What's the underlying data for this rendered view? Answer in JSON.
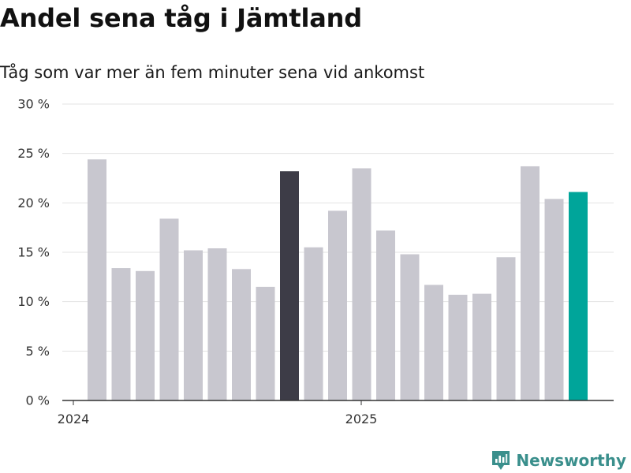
{
  "header": {
    "title": "Andel sena tåg i Jämtland",
    "subtitle": "Tåg som var mer än fem minuter sena vid ankomst"
  },
  "chart_data": {
    "type": "bar",
    "title": "Andel sena tåg i Jämtland",
    "subtitle": "Tåg som var mer än fem minuter sena vid ankomst",
    "xlabel": "",
    "ylabel": "",
    "ylim": [
      0,
      30
    ],
    "yticks": [
      0,
      5,
      10,
      15,
      20,
      25,
      30
    ],
    "ytick_labels": [
      "0 %",
      "5 %",
      "10 %",
      "15 %",
      "20 %",
      "25 %",
      "30 %"
    ],
    "xtick_labels": [
      "2024",
      "2025"
    ],
    "xtick_positions": [
      0,
      12
    ],
    "grid": true,
    "categories": [
      "2024-01",
      "2024-02",
      "2024-03",
      "2024-04",
      "2024-05",
      "2024-06",
      "2024-07",
      "2024-08",
      "2024-09",
      "2024-10",
      "2024-11",
      "2024-12",
      "2025-01",
      "2025-02",
      "2025-03",
      "2025-04",
      "2025-05",
      "2025-06",
      "2025-07",
      "2025-08",
      "2025-09"
    ],
    "values": [
      24.4,
      13.4,
      13.1,
      18.4,
      15.2,
      15.4,
      13.3,
      11.5,
      23.2,
      15.5,
      19.2,
      23.5,
      17.2,
      14.8,
      11.7,
      10.7,
      10.8,
      14.5,
      23.7,
      20.4,
      21.1
    ],
    "bar_colors": [
      "#c8c7cf",
      "#c8c7cf",
      "#c8c7cf",
      "#c8c7cf",
      "#c8c7cf",
      "#c8c7cf",
      "#c8c7cf",
      "#c8c7cf",
      "#3d3c47",
      "#c8c7cf",
      "#c8c7cf",
      "#c8c7cf",
      "#c8c7cf",
      "#c8c7cf",
      "#c8c7cf",
      "#c8c7cf",
      "#c8c7cf",
      "#c8c7cf",
      "#c8c7cf",
      "#c8c7cf",
      "#00a59a"
    ],
    "colors": {
      "default_bar": "#c8c7cf",
      "highlight_dark": "#3d3c47",
      "highlight_accent": "#00a59a",
      "grid": "#e3e3e3",
      "axis": "#333333"
    }
  },
  "footer": {
    "brand": "Newsworthy",
    "brand_color": "#3a8f8c",
    "logo_icon": "newsworthy-logo-icon"
  }
}
